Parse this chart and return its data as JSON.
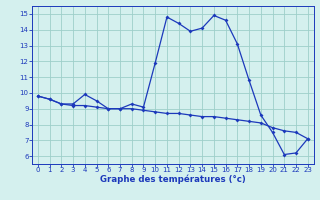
{
  "x": [
    0,
    1,
    2,
    3,
    4,
    5,
    6,
    7,
    8,
    9,
    10,
    11,
    12,
    13,
    14,
    15,
    16,
    17,
    18,
    19,
    20,
    21,
    22,
    23
  ],
  "temp_line": [
    9.8,
    9.6,
    9.3,
    9.3,
    9.9,
    9.5,
    9.0,
    9.0,
    9.3,
    9.1,
    11.9,
    14.8,
    14.4,
    13.9,
    14.1,
    14.9,
    14.6,
    13.1,
    10.8,
    8.6,
    7.5,
    6.1,
    6.2,
    7.1
  ],
  "ref_line": [
    9.8,
    9.6,
    9.3,
    9.2,
    9.2,
    9.1,
    9.0,
    9.0,
    9.0,
    8.9,
    8.8,
    8.7,
    8.7,
    8.6,
    8.5,
    8.5,
    8.4,
    8.3,
    8.2,
    8.1,
    7.8,
    7.6,
    7.5,
    7.1
  ],
  "line_color": "#1c39bb",
  "bg_color": "#d4f0ee",
  "grid_color": "#9ecfca",
  "xlabel": "Graphe des températures (°c)",
  "xlabel_color": "#1c39bb",
  "tick_color": "#1c39bb",
  "ylim": [
    5.5,
    15.5
  ],
  "xlim": [
    -0.5,
    23.5
  ],
  "yticks": [
    6,
    7,
    8,
    9,
    10,
    11,
    12,
    13,
    14,
    15
  ],
  "xticks": [
    0,
    1,
    2,
    3,
    4,
    5,
    6,
    7,
    8,
    9,
    10,
    11,
    12,
    13,
    14,
    15,
    16,
    17,
    18,
    19,
    20,
    21,
    22,
    23
  ],
  "tick_fontsize": 5.0,
  "xlabel_fontsize": 6.2,
  "marker_size": 2.0,
  "line_width": 0.9
}
